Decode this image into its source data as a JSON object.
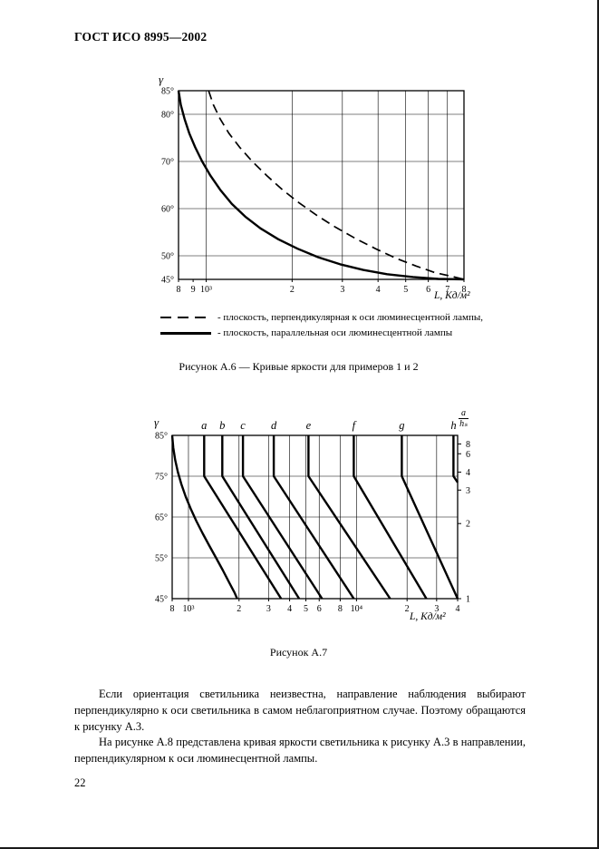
{
  "header": {
    "title": "ГОСТ ИСО 8995—2002"
  },
  "footer": {
    "page_number": "22"
  },
  "body": {
    "paragraphs": [
      "Если ориентация светильника неизвестна, направление наблюдения выбирают перпендикулярно к оси светильника в самом неблагоприятном случае. Поэтому обращаются к рисунку А.3.",
      "На рисунке А.8 представлена кривая яркости светильника к рисунку А.3 в направлении, перпендикулярном к оси люминесцентной лампы."
    ]
  },
  "chart_data": [
    {
      "id": "a6",
      "type": "line",
      "title": "Рисунок А.6 — Кривые яркости для примеров 1 и 2",
      "xlabel": "L, Кд/м²",
      "ylabel": "γ",
      "x_scale": "log",
      "x_range": [
        800,
        8000
      ],
      "y_range": [
        45,
        85
      ],
      "x_ticks": [
        {
          "v": 800,
          "label": "8"
        },
        {
          "v": 900,
          "label": "9"
        },
        {
          "v": 1000,
          "label": "10³"
        },
        {
          "v": 2000,
          "label": "2"
        },
        {
          "v": 3000,
          "label": "3"
        },
        {
          "v": 4000,
          "label": "4"
        },
        {
          "v": 5000,
          "label": "5"
        },
        {
          "v": 6000,
          "label": "6"
        },
        {
          "v": 7000,
          "label": "7"
        },
        {
          "v": 8000,
          "label": "8"
        }
      ],
      "y_ticks": [
        {
          "v": 85,
          "label": "85°"
        },
        {
          "v": 80,
          "label": "80°"
        },
        {
          "v": 70,
          "label": "70°"
        },
        {
          "v": 60,
          "label": "60°"
        },
        {
          "v": 50,
          "label": "50°"
        },
        {
          "v": 45,
          "label": "45°"
        }
      ],
      "x_grid": [
        1000,
        2000,
        3000,
        4000,
        5000,
        6000,
        7000,
        8000
      ],
      "y_grid": [
        80,
        70,
        60,
        50
      ],
      "legend": [
        {
          "style": "dashed",
          "label": "- плоскость, перпендикулярная к оси люминесцентной лампы,"
        },
        {
          "style": "solid",
          "label": "- плоскость, параллельная оси люминесцентной лампы"
        }
      ],
      "series": [
        {
          "key": "perpendicular",
          "name": "плоскость, перпендикулярная к оси люминесцентной лампы",
          "style": "dashed",
          "points": [
            [
              1020,
              85
            ],
            [
              1060,
              82
            ],
            [
              1120,
              79
            ],
            [
              1200,
              76
            ],
            [
              1310,
              73
            ],
            [
              1450,
              70
            ],
            [
              1630,
              67
            ],
            [
              1850,
              64
            ],
            [
              2120,
              61.2
            ],
            [
              2450,
              58.5
            ],
            [
              2850,
              56
            ],
            [
              3350,
              53.6
            ],
            [
              3950,
              51.4
            ],
            [
              4650,
              49.4
            ],
            [
              5450,
              47.8
            ],
            [
              6350,
              46.4
            ],
            [
              7300,
              45.6
            ],
            [
              8000,
              45
            ]
          ]
        },
        {
          "key": "parallel",
          "name": "плоскость, параллельная оси люминесцентной лампы",
          "style": "solid",
          "points": [
            [
              800,
              85
            ],
            [
              815,
              82
            ],
            [
              840,
              79
            ],
            [
              872,
              76
            ],
            [
              915,
              73
            ],
            [
              968,
              70
            ],
            [
              1035,
              67
            ],
            [
              1120,
              64
            ],
            [
              1230,
              61
            ],
            [
              1370,
              58.3
            ],
            [
              1550,
              55.8
            ],
            [
              1790,
              53.5
            ],
            [
              2090,
              51.5
            ],
            [
              2470,
              49.7
            ],
            [
              2950,
              48.2
            ],
            [
              3550,
              47
            ],
            [
              4300,
              46.1
            ],
            [
              5300,
              45.5
            ],
            [
              6500,
              45.1
            ],
            [
              8000,
              45
            ]
          ]
        }
      ]
    },
    {
      "id": "a7",
      "type": "line",
      "title": "Рисунок А.7",
      "xlabel": "L, Кд/м²",
      "ylabel": "γ",
      "x_scale": "log",
      "x_range": [
        800,
        40000
      ],
      "y_range": [
        45,
        85
      ],
      "x_ticks": [
        {
          "v": 800,
          "label": "8"
        },
        {
          "v": 1000,
          "label": "10³"
        },
        {
          "v": 2000,
          "label": "2"
        },
        {
          "v": 3000,
          "label": "3"
        },
        {
          "v": 4000,
          "label": "4"
        },
        {
          "v": 5000,
          "label": "5"
        },
        {
          "v": 6000,
          "label": "6"
        },
        {
          "v": 8000,
          "label": "8"
        },
        {
          "v": 10000,
          "label": "10⁴"
        },
        {
          "v": 20000,
          "label": "2"
        },
        {
          "v": 30000,
          "label": "3"
        },
        {
          "v": 40000,
          "label": "4"
        }
      ],
      "y_ticks": [
        {
          "v": 85,
          "label": "85°"
        },
        {
          "v": 75,
          "label": "75°"
        },
        {
          "v": 65,
          "label": "65°"
        },
        {
          "v": 55,
          "label": "55°"
        },
        {
          "v": 45,
          "label": "45°"
        }
      ],
      "x_grid": [
        1000,
        2000,
        3000,
        4000,
        5000,
        6000,
        8000,
        10000,
        20000,
        30000
      ],
      "y_grid": [
        75,
        65,
        55
      ],
      "top_labels": [
        {
          "v": 1240,
          "label": "a"
        },
        {
          "v": 1590,
          "label": "b"
        },
        {
          "v": 2110,
          "label": "c"
        },
        {
          "v": 3220,
          "label": "d"
        },
        {
          "v": 5180,
          "label": "e"
        },
        {
          "v": 9640,
          "label": "f"
        },
        {
          "v": 18620,
          "label": "g"
        },
        {
          "v": 37800,
          "label": "h"
        }
      ],
      "right_axis": {
        "title_num": "a",
        "title_den": "hₛ",
        "ticks": [
          {
            "label": "8",
            "gamma": 82.9
          },
          {
            "label": "6",
            "gamma": 80.5
          },
          {
            "label": "4",
            "gamma": 76.0
          },
          {
            "label": "3",
            "gamma": 71.6
          },
          {
            "label": "2",
            "gamma": 63.4
          },
          {
            "label": "1",
            "gamma": 45.0
          }
        ]
      },
      "series": [
        {
          "key": "boundary",
          "name": "левая граничная кривая",
          "style": "solid",
          "points": [
            [
              800,
              85
            ],
            [
              812,
              82
            ],
            [
              833,
              79
            ],
            [
              865,
              76
            ],
            [
              908,
              73
            ],
            [
              963,
              70
            ],
            [
              1032,
              67
            ],
            [
              1115,
              64
            ],
            [
              1215,
              61
            ],
            [
              1330,
              58
            ],
            [
              1460,
              55
            ],
            [
              1600,
              52
            ],
            [
              1745,
              49
            ],
            [
              1880,
              46.5
            ],
            [
              1950,
              45
            ]
          ]
        },
        {
          "key": "a",
          "name": "a",
          "style": "solid",
          "points": [
            [
              1240,
              85
            ],
            [
              1240,
              75
            ],
            [
              3560,
              45
            ]
          ]
        },
        {
          "key": "b",
          "name": "b",
          "style": "solid",
          "points": [
            [
              1590,
              85
            ],
            [
              1590,
              75
            ],
            [
              4560,
              45
            ]
          ]
        },
        {
          "key": "c",
          "name": "c",
          "style": "solid",
          "points": [
            [
              2110,
              85
            ],
            [
              2110,
              75
            ],
            [
              6240,
              45
            ]
          ]
        },
        {
          "key": "d",
          "name": "d",
          "style": "solid",
          "points": [
            [
              3220,
              85
            ],
            [
              3220,
              75
            ],
            [
              9640,
              45
            ]
          ]
        },
        {
          "key": "e",
          "name": "e",
          "style": "solid",
          "points": [
            [
              5180,
              85
            ],
            [
              5180,
              75
            ],
            [
              15850,
              45
            ]
          ]
        },
        {
          "key": "f",
          "name": "f",
          "style": "solid",
          "points": [
            [
              9640,
              85
            ],
            [
              9640,
              75
            ],
            [
              26060,
              45
            ]
          ]
        },
        {
          "key": "g",
          "name": "g",
          "style": "solid",
          "points": [
            [
              18620,
              85
            ],
            [
              18620,
              75
            ],
            [
              40000,
              45
            ]
          ]
        },
        {
          "key": "h",
          "name": "h",
          "style": "solid",
          "points": [
            [
              37800,
              85
            ],
            [
              37800,
              75
            ],
            [
              40000,
              73.5
            ]
          ]
        }
      ]
    }
  ]
}
